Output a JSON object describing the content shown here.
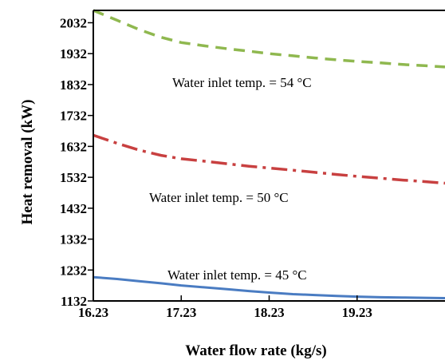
{
  "chart_data": {
    "type": "line",
    "xlabel": "Water flow rate (kg/s)",
    "ylabel": "Heat removal (kW)",
    "x_ticks": [
      "16.23",
      "17.23",
      "18.23",
      "19.23"
    ],
    "y_ticks": [
      "1132",
      "1232",
      "1332",
      "1432",
      "1532",
      "1632",
      "1732",
      "1832",
      "1932",
      "2032"
    ],
    "xlim": [
      16.23,
      20.23
    ],
    "ylim": [
      1132,
      2072
    ],
    "grid": false,
    "series": [
      {
        "name": "Water inlet temp. = 54 °C",
        "color": "#8fb84f",
        "dash": "dashed",
        "x": [
          16.23,
          16.5,
          16.75,
          17.0,
          17.23,
          17.5,
          17.75,
          18.0,
          18.23,
          18.5,
          18.75,
          19.0,
          19.23,
          19.5,
          19.75,
          20.0,
          20.23
        ],
        "y": [
          2072,
          2040,
          2010,
          1985,
          1968,
          1957,
          1948,
          1940,
          1932,
          1925,
          1918,
          1912,
          1907,
          1902,
          1897,
          1893,
          1889
        ]
      },
      {
        "name": "Water inlet temp. = 50 °C",
        "color": "#c84040",
        "dash": "dashdot",
        "x": [
          16.23,
          16.5,
          16.75,
          17.0,
          17.23,
          17.5,
          17.75,
          18.0,
          18.23,
          18.5,
          18.75,
          19.0,
          19.23,
          19.5,
          19.75,
          20.0,
          20.23
        ],
        "y": [
          1668,
          1642,
          1620,
          1603,
          1592,
          1584,
          1576,
          1568,
          1562,
          1555,
          1548,
          1541,
          1535,
          1529,
          1523,
          1518,
          1513
        ]
      },
      {
        "name": "Water inlet temp. = 45 °C",
        "color": "#4a7cc2",
        "dash": "solid",
        "x": [
          16.23,
          16.5,
          16.75,
          17.0,
          17.23,
          17.5,
          17.75,
          18.0,
          18.23,
          18.5,
          18.75,
          19.0,
          19.23,
          19.5,
          19.75,
          20.0,
          20.23
        ],
        "y": [
          1209,
          1203,
          1196,
          1189,
          1182,
          1176,
          1170,
          1164,
          1159,
          1154,
          1151,
          1148,
          1146,
          1144,
          1143,
          1142,
          1141
        ]
      }
    ],
    "annotations": [
      "Water inlet temp. = 54 °C",
      "Water inlet temp. = 50 °C",
      "Water inlet temp. = 45 °C"
    ]
  }
}
